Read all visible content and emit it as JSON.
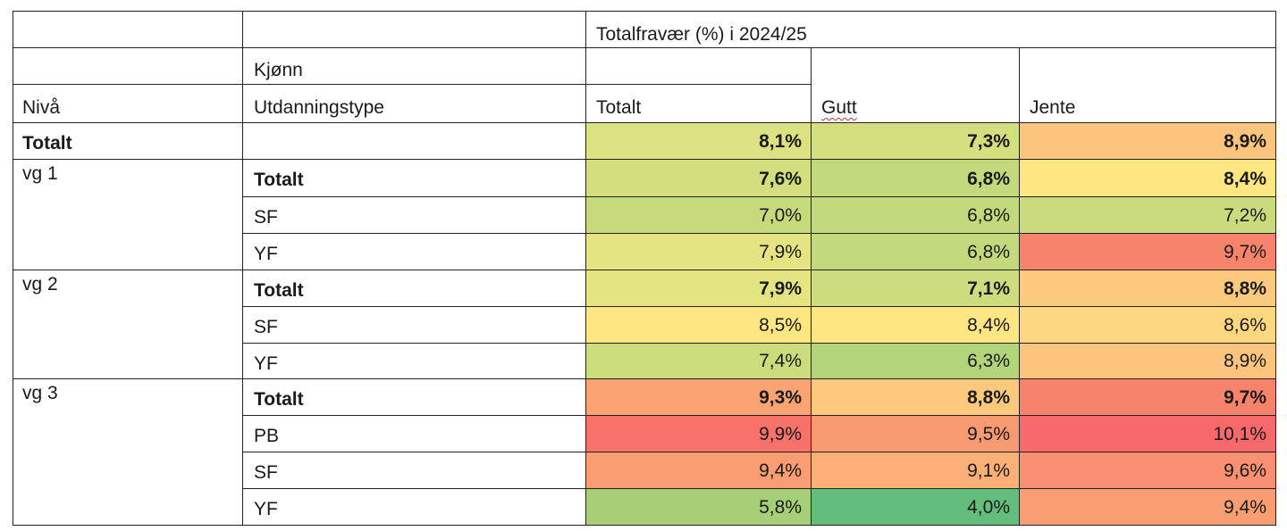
{
  "header": {
    "title": "Totalfravær (%) i 2024/25",
    "kjonn": "Kjønn",
    "utdanningstype": "Utdanningstype",
    "niva": "Nivå",
    "columns": [
      "Totalt",
      "Gutt",
      "Jente"
    ]
  },
  "rows": [
    {
      "level": "Totalt",
      "type": "",
      "values": [
        "8,1%",
        "7,3%",
        "8,9%"
      ],
      "bold": true
    },
    {
      "level": "vg 1",
      "type": "Totalt",
      "values": [
        "7,6%",
        "6,8%",
        "8,4%"
      ],
      "bold": true
    },
    {
      "level": "",
      "type": "SF",
      "values": [
        "7,0%",
        "6,8%",
        "7,2%"
      ],
      "bold": false
    },
    {
      "level": "",
      "type": "YF",
      "values": [
        "7,9%",
        "6,8%",
        "9,7%"
      ],
      "bold": false
    },
    {
      "level": "vg 2",
      "type": "Totalt",
      "values": [
        "7,9%",
        "7,1%",
        "8,8%"
      ],
      "bold": true
    },
    {
      "level": "",
      "type": "SF",
      "values": [
        "8,5%",
        "8,4%",
        "8,6%"
      ],
      "bold": false
    },
    {
      "level": "",
      "type": "YF",
      "values": [
        "7,4%",
        "6,3%",
        "8,9%"
      ],
      "bold": false
    },
    {
      "level": "vg 3",
      "type": "Totalt",
      "values": [
        "9,3%",
        "8,8%",
        "9,7%"
      ],
      "bold": true
    },
    {
      "level": "",
      "type": "PB",
      "values": [
        "9,9%",
        "9,5%",
        "10,1%"
      ],
      "bold": false
    },
    {
      "level": "",
      "type": "SF",
      "values": [
        "9,4%",
        "9,1%",
        "9,6%"
      ],
      "bold": false
    },
    {
      "level": "",
      "type": "YF",
      "values": [
        "5,8%",
        "4,0%",
        "9,4%"
      ],
      "bold": false
    }
  ],
  "cell_colors": [
    [
      "#dce281",
      "#d5df7f",
      "#fcc47c"
    ],
    [
      "#d3df7e",
      "#c3da7c",
      "#fee683"
    ],
    [
      "#c6da7c",
      "#c3da7c",
      "#cadb7d"
    ],
    [
      "#e4e482",
      "#c3da7c",
      "#f8836c"
    ],
    [
      "#e4e482",
      "#ccdc7e",
      "#fdc97d"
    ],
    [
      "#fee683",
      "#fee683",
      "#fed880"
    ],
    [
      "#cbdc7d",
      "#b3d47a",
      "#fcc47c"
    ],
    [
      "#faa474",
      "#fdc97d",
      "#f8836c"
    ],
    [
      "#f7726b",
      "#f89a71",
      "#f8696b"
    ],
    [
      "#f99e72",
      "#fbb077",
      "#f99071"
    ],
    [
      "#a6cf78",
      "#63be7b",
      "#f99e72"
    ]
  ]
}
